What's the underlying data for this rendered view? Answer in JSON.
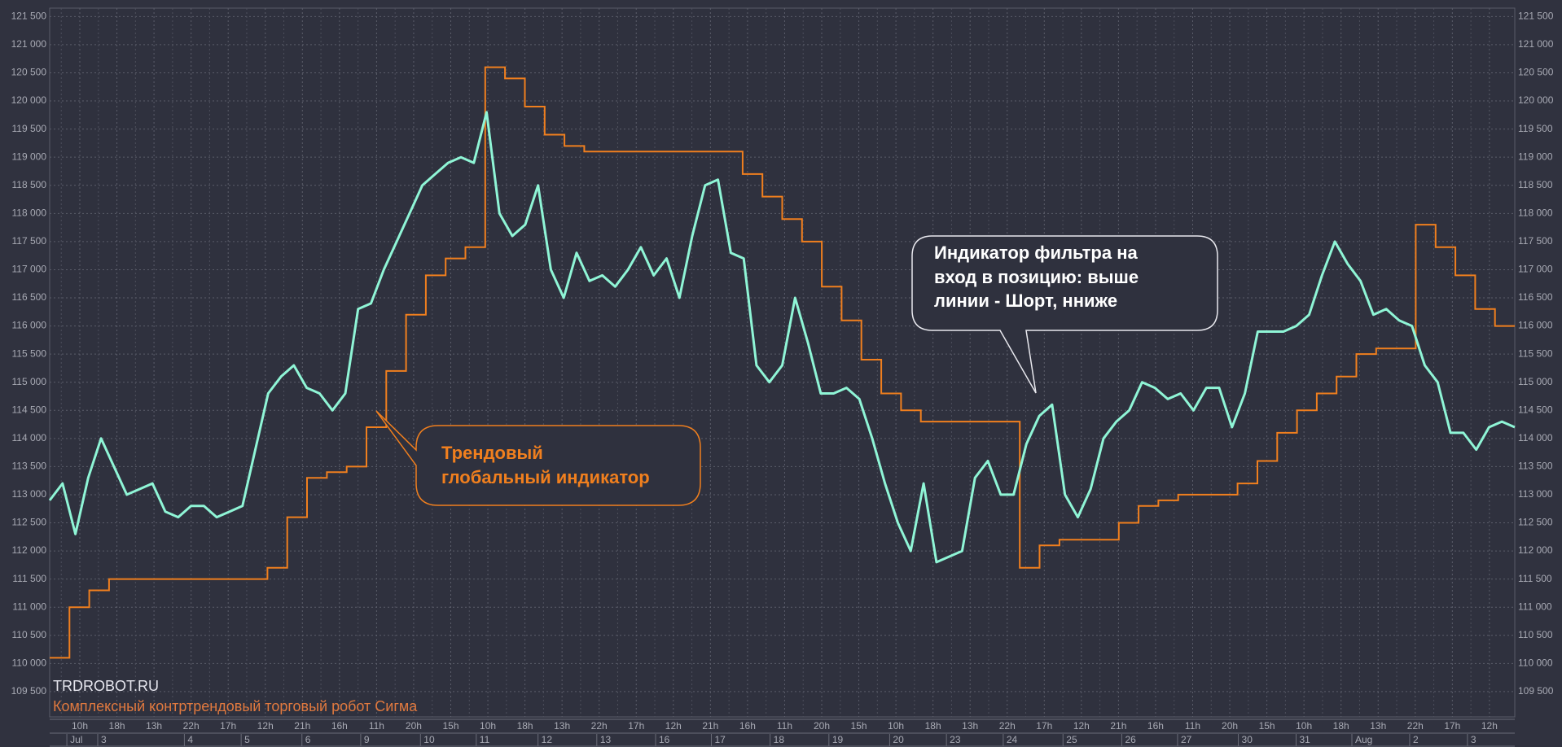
{
  "chart_data": {
    "type": "line",
    "grid": true,
    "ylim": [
      109050,
      121650
    ],
    "yticks": [
      {
        "value": 109500,
        "label": "109 500"
      },
      {
        "value": 110000,
        "label": "110 000"
      },
      {
        "value": 110500,
        "label": "110 500"
      },
      {
        "value": 111000,
        "label": "111 000"
      },
      {
        "value": 111500,
        "label": "111 500"
      },
      {
        "value": 112000,
        "label": "112 000"
      },
      {
        "value": 112500,
        "label": "112 500"
      },
      {
        "value": 113000,
        "label": "113 000"
      },
      {
        "value": 113500,
        "label": "113 500"
      },
      {
        "value": 114000,
        "label": "114 000"
      },
      {
        "value": 114500,
        "label": "114 500"
      },
      {
        "value": 115000,
        "label": "115 000"
      },
      {
        "value": 115500,
        "label": "115 500"
      },
      {
        "value": 116000,
        "label": "116 000"
      },
      {
        "value": 116500,
        "label": "116 500"
      },
      {
        "value": 117000,
        "label": "117 000"
      },
      {
        "value": 117500,
        "label": "117 500"
      },
      {
        "value": 118000,
        "label": "118 000"
      },
      {
        "value": 118500,
        "label": "118 500"
      },
      {
        "value": 119000,
        "label": "119 000"
      },
      {
        "value": 119500,
        "label": "119 500"
      },
      {
        "value": 120000,
        "label": "120 000"
      },
      {
        "value": 120500,
        "label": "120 500"
      },
      {
        "value": 121000,
        "label": "121 000"
      },
      {
        "value": 121500,
        "label": "121 500"
      }
    ],
    "time_labels": [
      "10h",
      "18h",
      "13h",
      "22h",
      "17h",
      "12h",
      "21h",
      "16h",
      "11h",
      "20h",
      "15h",
      "10h",
      "18h",
      "13h",
      "22h",
      "17h",
      "12h",
      "21h",
      "16h",
      "11h",
      "20h",
      "15h",
      "10h",
      "18h",
      "13h",
      "22h",
      "17h",
      "12h",
      "21h",
      "16h",
      "11h",
      "20h",
      "15h",
      "10h",
      "18h",
      "13h",
      "22h",
      "17h",
      "12h"
    ],
    "date_labels": [
      "Jul",
      "3",
      "4",
      "5",
      "6",
      "9",
      "10",
      "11",
      "12",
      "13",
      "16",
      "17",
      "18",
      "19",
      "20",
      "23",
      "24",
      "25",
      "26",
      "27",
      "30",
      "31",
      "Aug",
      "2",
      "3"
    ],
    "series": [
      {
        "color": "#8ff5d6",
        "style": "line",
        "values": [
          112900,
          113200,
          112300,
          113300,
          114000,
          113500,
          113000,
          113100,
          113200,
          112700,
          112600,
          112800,
          112800,
          112600,
          112700,
          112800,
          113800,
          114800,
          115100,
          115300,
          114900,
          114800,
          114500,
          114800,
          116300,
          116400,
          117000,
          117500,
          118000,
          118500,
          118700,
          118900,
          119000,
          118900,
          119800,
          118000,
          117600,
          117800,
          118500,
          117000,
          116500,
          117300,
          116800,
          116900,
          116700,
          117000,
          117400,
          116900,
          117200,
          116500,
          117600,
          118500,
          118600,
          117300,
          117200,
          115300,
          115000,
          115300,
          116500,
          115700,
          114800,
          114800,
          114900,
          114700,
          114000,
          113200,
          112500,
          112000,
          113200,
          111800,
          111900,
          112000,
          113300,
          113600,
          113000,
          113000,
          113900,
          114400,
          114600,
          113000,
          112600,
          113100,
          114000,
          114300,
          114500,
          115000,
          114900,
          114700,
          114800,
          114500,
          114900,
          114900,
          114200,
          114800,
          115900,
          115900,
          115900,
          116000,
          116200,
          116900,
          117500,
          117100,
          116800,
          116200,
          116300,
          116100,
          116000,
          115300,
          115000,
          114100,
          114100,
          113800,
          114200,
          114300,
          114200
        ]
      },
      {
        "color": "#f07f1e",
        "style": "step",
        "values": [
          110100,
          111000,
          111300,
          111500,
          111500,
          111500,
          111500,
          111500,
          111500,
          111500,
          111500,
          111700,
          112600,
          113300,
          113400,
          113500,
          114200,
          115200,
          116200,
          116900,
          117200,
          117400,
          120600,
          120400,
          119900,
          119400,
          119200,
          119100,
          119100,
          119100,
          119100,
          119100,
          119100,
          119100,
          119100,
          118700,
          118300,
          117900,
          117500,
          116700,
          116100,
          115400,
          114800,
          114500,
          114300,
          114300,
          114300,
          114300,
          114300,
          111700,
          112100,
          112200,
          112200,
          112200,
          112500,
          112800,
          112900,
          113000,
          113000,
          113000,
          113200,
          113600,
          114100,
          114500,
          114800,
          115100,
          115500,
          115600,
          115600,
          117800,
          117400,
          116900,
          116300,
          116000
        ]
      }
    ],
    "annotations": [
      {
        "lines": [
          "Индикатор фильтра на",
          "вход в позицию: выше",
          "линии - Шорт, нниже"
        ]
      },
      {
        "lines": [
          "Трендовый",
          "глобальный индикатор"
        ]
      }
    ],
    "watermark": "TRDROBOT.RU",
    "caption": "Комплексный контртрендовый торговый робот Сигма"
  }
}
